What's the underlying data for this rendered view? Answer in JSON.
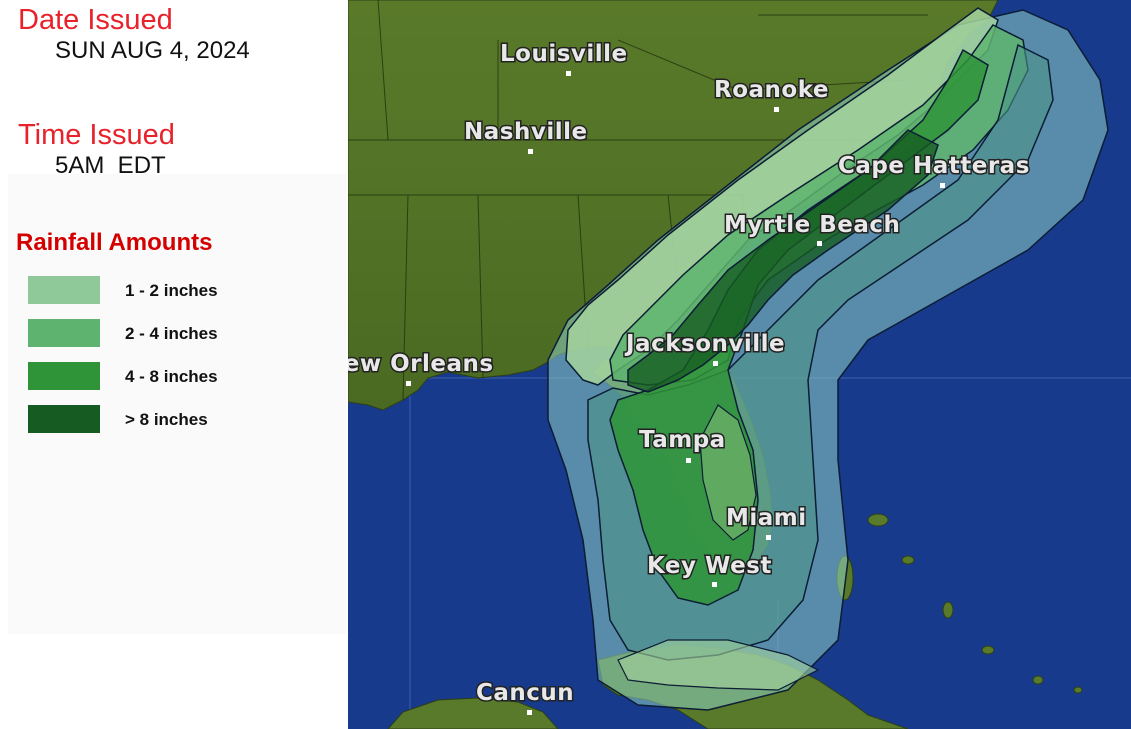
{
  "header": {
    "date_label": "Date Issued",
    "date_value": "SUN AUG 4, 2024",
    "time_label": "Time Issued",
    "time_value": "5AM  EDT"
  },
  "legend": {
    "title": "Rainfall Amounts",
    "items": [
      {
        "label": "1 - 2 inches",
        "color": "#8fc99a"
      },
      {
        "label": "2 - 4 inches",
        "color": "#5eb46f"
      },
      {
        "label": "4 - 8 inches",
        "color": "#2f9438"
      },
      {
        "label": "> 8 inches",
        "color": "#165c22"
      }
    ]
  },
  "map": {
    "cities": [
      {
        "name": "Louisville"
      },
      {
        "name": "Roanoke"
      },
      {
        "name": "Nashville"
      },
      {
        "name": "Cape Hatteras"
      },
      {
        "name": "Myrtle Beach"
      },
      {
        "name": "New Orleans"
      },
      {
        "name": "Jacksonville"
      },
      {
        "name": "Tampa"
      },
      {
        "name": "Miami"
      },
      {
        "name": "Key West"
      },
      {
        "name": "Cancun"
      }
    ],
    "colors": {
      "ocean": "#173a8c",
      "land": "#5e7a2e",
      "land_dark": "#405a1c"
    }
  }
}
